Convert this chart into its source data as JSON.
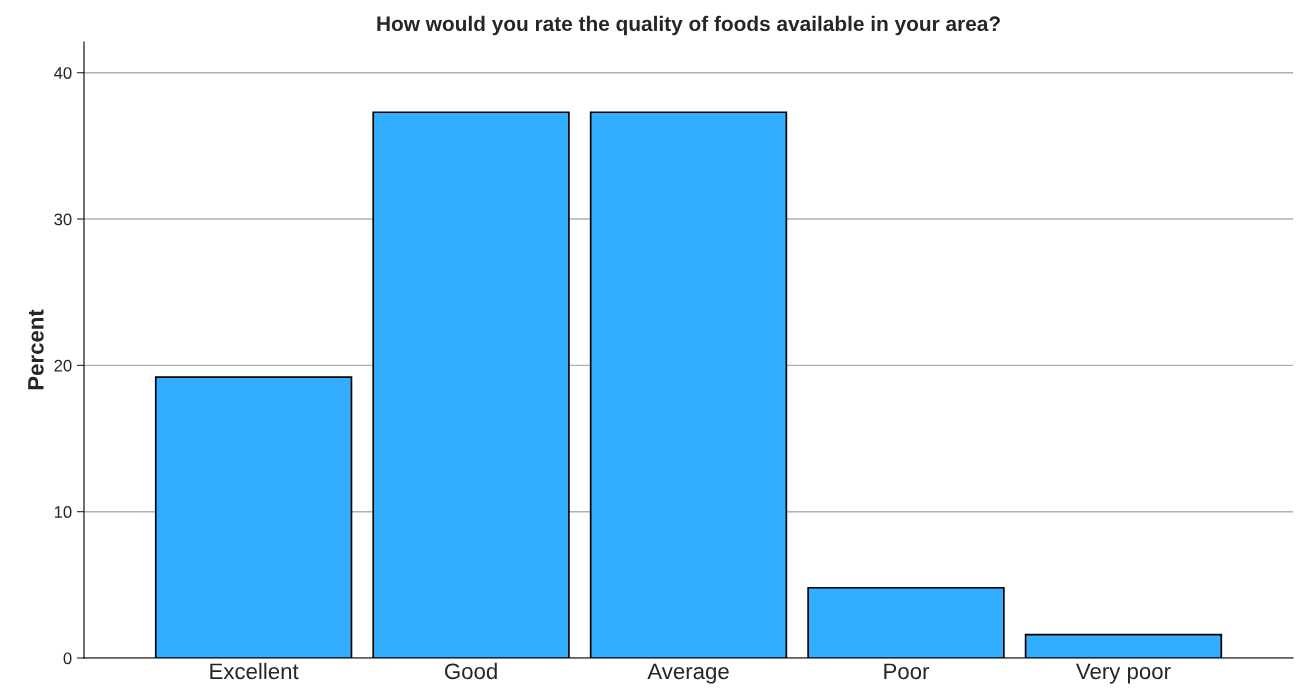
{
  "chart_data": {
    "type": "bar",
    "title": "How would you rate the quality of foods available in your area?",
    "ylabel": "Percent",
    "categories": [
      "Excellent",
      "Good",
      "Average",
      "Poor",
      "Very poor"
    ],
    "values": [
      19.2,
      37.3,
      37.3,
      4.8,
      1.6
    ],
    "color": "#32adff",
    "ylim": [
      0,
      42.1
    ],
    "yticks": [
      0,
      10,
      20,
      30,
      40
    ],
    "grid": "y"
  }
}
